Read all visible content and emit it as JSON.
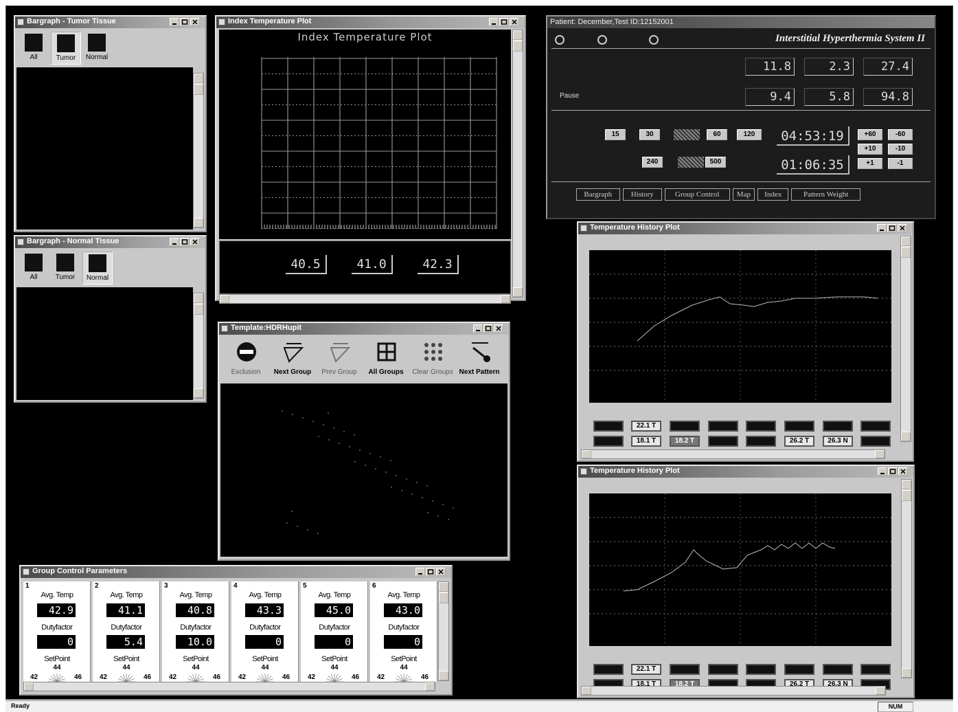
{
  "tumor_bargraph": {
    "title": "Bargraph - Tumor Tissue",
    "buttons": [
      "All",
      "Tumor",
      "Normal"
    ]
  },
  "normal_bargraph": {
    "title": "Bargraph - Normal Tissue",
    "buttons": [
      "All",
      "Tumor",
      "Normal"
    ]
  },
  "index_plot": {
    "title": "Index Temperature Plot",
    "heading": "Index Temperature Plot",
    "readouts": [
      "40.5",
      "41.0",
      "42.3"
    ]
  },
  "control_panel": {
    "patient": "Patient: December,Test ID:12152001",
    "system": "Interstitial Hyperthermia System II",
    "pause": "Pause",
    "readouts_top": [
      "11.8",
      "2.3",
      "27.4"
    ],
    "readouts_bottom": [
      "9.4",
      "5.8",
      "94.8"
    ],
    "range_buttons": [
      "15",
      "30",
      "60",
      "120",
      "240",
      "500"
    ],
    "times": [
      "04:53:19",
      "01:06:35"
    ],
    "adjust_buttons": [
      "+60",
      "-60",
      "+10",
      "-10",
      "+1",
      "-1"
    ],
    "tabs": [
      "Bargraph",
      "History",
      "Group Control",
      "Map",
      "Index",
      "Pattern Weight"
    ]
  },
  "history_plots": [
    {
      "title": "Temperature History Plot",
      "probe_labels": [
        "22.1 T",
        "18.1 T",
        "18.2 T",
        "26.2 T",
        "26.3 N"
      ]
    },
    {
      "title": "Temperature History Plot",
      "probe_labels": [
        "22.1 T",
        "18.1 T",
        "18.2 T",
        "26.2 T",
        "26.3 N"
      ]
    }
  ],
  "template": {
    "title": "Template:HDRHupit",
    "tools": [
      "Exclusion",
      "Next Group",
      "Prev Group",
      "All Groups",
      "Clear Groups",
      "Next Pattern"
    ]
  },
  "group_control": {
    "title": "Group Control Parameters",
    "avg_label": "Avg. Temp",
    "duty_label": "Dutyfactor",
    "setpoint_label": "SetPoint",
    "groups": [
      {
        "number": "1",
        "avg": "42.9",
        "duty": "0",
        "setpoint": "44",
        "min": "42",
        "max": "46"
      },
      {
        "number": "2",
        "avg": "41.1",
        "duty": "5.4",
        "setpoint": "44",
        "min": "42",
        "max": "46"
      },
      {
        "number": "3",
        "avg": "40.8",
        "duty": "10.0",
        "setpoint": "44",
        "min": "42",
        "max": "46"
      },
      {
        "number": "4",
        "avg": "43.3",
        "duty": "0",
        "setpoint": "44",
        "min": "42",
        "max": "46"
      },
      {
        "number": "5",
        "avg": "45.0",
        "duty": "0",
        "setpoint": "44",
        "min": "42",
        "max": "46"
      },
      {
        "number": "6",
        "avg": "43.0",
        "duty": "0",
        "setpoint": "44",
        "min": "42",
        "max": "46"
      }
    ]
  },
  "status": {
    "text": "Ready",
    "num": "NUM"
  }
}
